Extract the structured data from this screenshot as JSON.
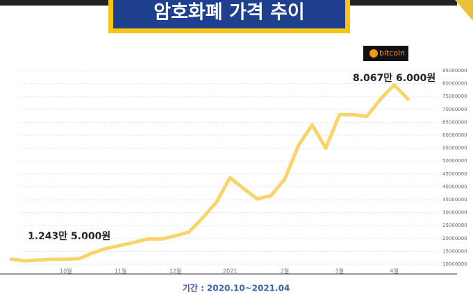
{
  "chart_data": {
    "type": "line",
    "title": "암호화폐 가격 추이",
    "categories": [
      null,
      null,
      null,
      null,
      "10월",
      null,
      null,
      null,
      "11월",
      null,
      null,
      null,
      "12월",
      null,
      null,
      null,
      "2021",
      null,
      null,
      null,
      "2월",
      null,
      null,
      null,
      "3월",
      null,
      null,
      null,
      "4월",
      null
    ],
    "series": [
      {
        "name": "bitcoin",
        "color": "#f7d56b",
        "values": [
          12000000,
          11300000,
          11600000,
          11900000,
          11900000,
          12200000,
          14500000,
          16200000,
          17300000,
          18500000,
          19800000,
          19800000,
          21000000,
          22500000,
          28000000,
          34000000,
          43500000,
          39300000,
          35300000,
          36600000,
          43000000,
          56000000,
          64000000,
          55000000,
          68000000,
          68000000,
          67300000,
          74000000,
          79500000,
          74000000
        ]
      }
    ],
    "ylim": [
      10000000,
      85000000
    ],
    "yticks": [
      10000000,
      15000000,
      20000000,
      25000000,
      30000000,
      35000000,
      40000000,
      45000000,
      50000000,
      55000000,
      60000000,
      65000000,
      70000000,
      75000000,
      80000000,
      85000000
    ],
    "grid": true,
    "annotations": [
      "1.243만 5.000원",
      "8.067만 6.000원"
    ],
    "footer": "기간 : 2020.10~2021.04"
  }
}
